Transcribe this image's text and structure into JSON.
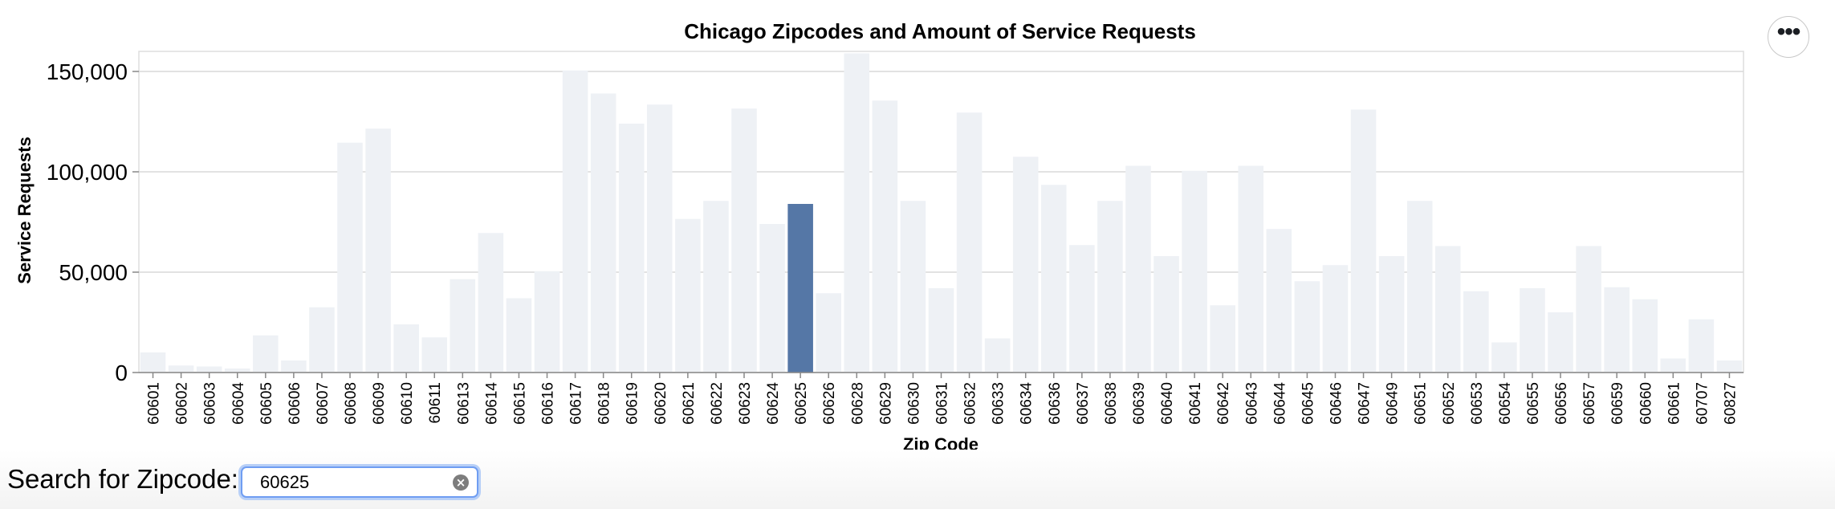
{
  "chart_data": {
    "type": "bar",
    "title": "Chicago Zipcodes and Amount of Service Requests",
    "xlabel": "Zip Code",
    "ylabel": "Service Requests",
    "ylim": [
      0,
      160000
    ],
    "yticks": [
      0,
      50000,
      100000,
      150000
    ],
    "ytick_labels": [
      "0",
      "50,000",
      "100,000",
      "150,000"
    ],
    "grid": true,
    "highlighted_category": "60625",
    "colors": {
      "dim": "#eef1f5",
      "highlight": "#5577a6"
    },
    "categories": [
      "60601",
      "60602",
      "60603",
      "60604",
      "60605",
      "60606",
      "60607",
      "60608",
      "60609",
      "60610",
      "60611",
      "60613",
      "60614",
      "60615",
      "60616",
      "60617",
      "60618",
      "60619",
      "60620",
      "60621",
      "60622",
      "60623",
      "60624",
      "60625",
      "60626",
      "60628",
      "60629",
      "60630",
      "60631",
      "60632",
      "60633",
      "60634",
      "60636",
      "60637",
      "60638",
      "60639",
      "60640",
      "60641",
      "60642",
      "60643",
      "60644",
      "60645",
      "60646",
      "60647",
      "60649",
      "60651",
      "60652",
      "60653",
      "60654",
      "60655",
      "60656",
      "60657",
      "60659",
      "60660",
      "60661",
      "60707",
      "60827"
    ],
    "values": [
      10000,
      3500,
      3000,
      2000,
      18500,
      6000,
      32500,
      114500,
      121500,
      24000,
      17500,
      46500,
      69500,
      37000,
      50500,
      150500,
      139000,
      124000,
      133500,
      76500,
      85500,
      131500,
      74000,
      84000,
      39500,
      159000,
      135500,
      85500,
      42000,
      129500,
      17000,
      107500,
      93500,
      63500,
      85500,
      103000,
      58000,
      100500,
      33500,
      103000,
      71500,
      45500,
      53500,
      131000,
      58000,
      85500,
      63000,
      40500,
      15000,
      42000,
      30000,
      63000,
      42500,
      36500,
      7000,
      26500,
      6000
    ]
  },
  "actions": {
    "label": "•••"
  },
  "search": {
    "label": "Search for Zipcode:",
    "value": "60625",
    "clear_label": "×"
  }
}
